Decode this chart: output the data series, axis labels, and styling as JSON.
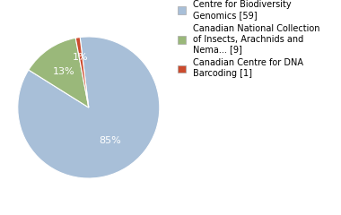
{
  "slices": [
    85,
    13,
    1
  ],
  "labels": [
    "Centre for Biodiversity\nGenomics [59]",
    "Canadian National Collection\nof Insects, Arachnids and\nNema... [9]",
    "Canadian Centre for DNA\nBarcoding [1]"
  ],
  "colors": [
    "#a8bfd8",
    "#9ab87a",
    "#cc4b2e"
  ],
  "autopct_labels": [
    "85%",
    "13%",
    "1%"
  ],
  "startangle": 97,
  "background_color": "#ffffff",
  "legend_fontsize": 7.0,
  "autopct_fontsize": 8,
  "label_radii": [
    0.55,
    0.62,
    0.72
  ]
}
